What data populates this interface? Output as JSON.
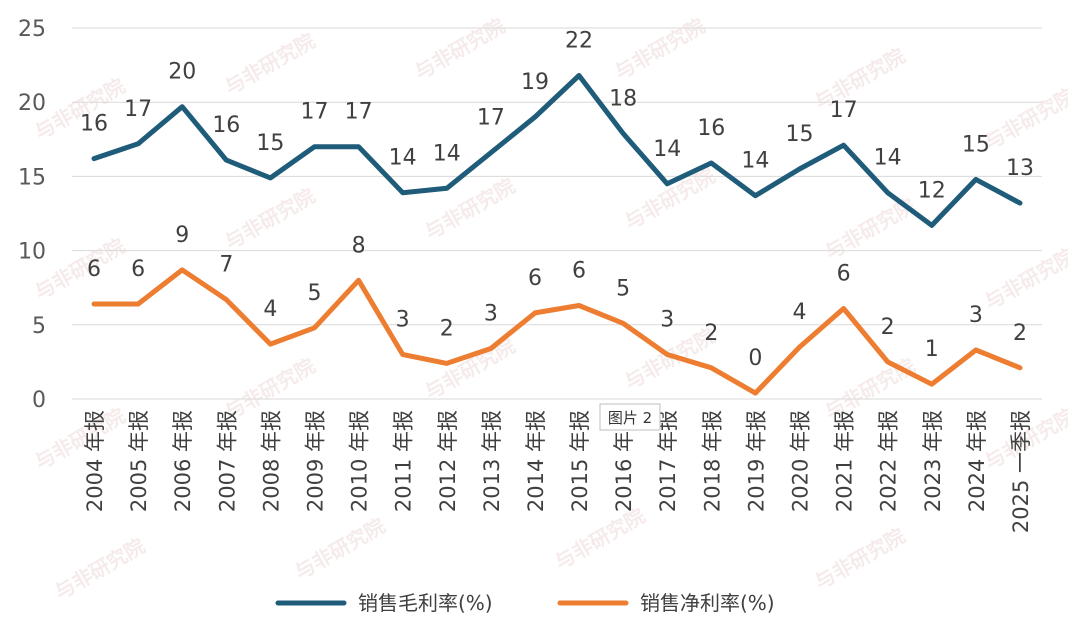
{
  "chart_data": {
    "type": "line",
    "categories": [
      "2004 年报",
      "2005 年报",
      "2006 年报",
      "2007 年报",
      "2008 年报",
      "2009 年报",
      "2010 年报",
      "2011 年报",
      "2012 年报",
      "2013 年报",
      "2014 年报",
      "2015 年报",
      "2016 年报",
      "2017 年报",
      "2018 年报",
      "2019 年报",
      "2020 年报",
      "2021 年报",
      "2022 年报",
      "2023 年报",
      "2024 年报",
      "2025 一季报"
    ],
    "series": [
      {
        "name": "销售毛利率(%)",
        "color": "#1f5c7a",
        "values": [
          16.2,
          17.2,
          19.7,
          16.1,
          14.9,
          17.0,
          17.0,
          13.9,
          14.2,
          16.6,
          19.0,
          21.8,
          17.9,
          14.5,
          15.9,
          13.7,
          15.5,
          17.1,
          13.9,
          11.7,
          14.8,
          13.2
        ],
        "labels": [
          "16",
          "17",
          "20",
          "16",
          "15",
          "17",
          "17",
          "14",
          "14",
          "17",
          "19",
          "22",
          "18",
          "14",
          "16",
          "14",
          "15",
          "17",
          "14",
          "12",
          "15",
          "13"
        ]
      },
      {
        "name": "销售净利率(%)",
        "color": "#ed7d31",
        "values": [
          6.4,
          6.4,
          8.7,
          6.7,
          3.7,
          4.8,
          8.0,
          3.0,
          2.4,
          3.4,
          5.8,
          6.3,
          5.1,
          3.0,
          2.1,
          0.4,
          3.5,
          6.1,
          2.5,
          1.0,
          3.3,
          2.1
        ],
        "labels": [
          "6",
          "6",
          "9",
          "7",
          "4",
          "5",
          "8",
          "3",
          "2",
          "3",
          "6",
          "6",
          "5",
          "3",
          "2",
          "0",
          "4",
          "6",
          "2",
          "1",
          "3",
          "2"
        ]
      }
    ],
    "ylim": [
      0,
      25
    ],
    "yticks": [
      0,
      5,
      10,
      15,
      20,
      25
    ],
    "grid": true,
    "legend_position": "bottom",
    "title": "",
    "xlabel": "",
    "ylabel": ""
  },
  "overlay_tag": "图片 2",
  "watermark": "与非研究院"
}
